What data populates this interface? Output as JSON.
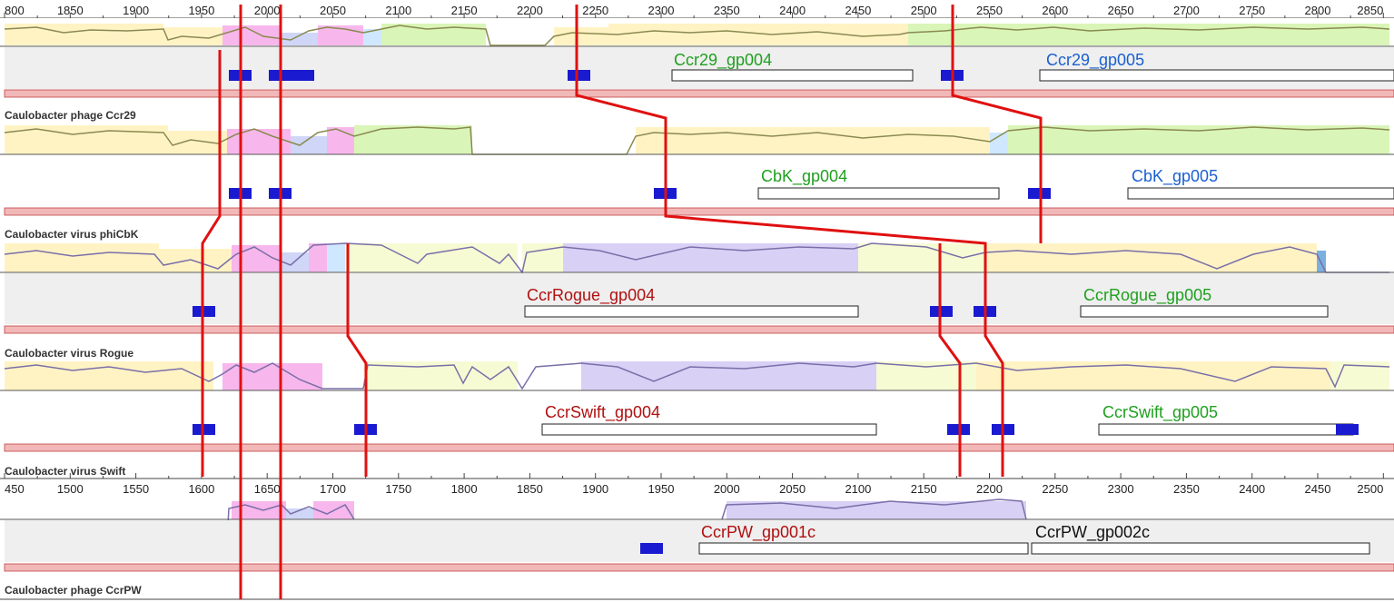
{
  "colors": {
    "red_line": "#e01010",
    "blue_block": "#1a1ad0",
    "panel_grey": "#efefef",
    "pink_bar": "#f2b8b8",
    "yellow": "#fff0b3",
    "green": "#d9f5b8",
    "purple": "#d8d0f5",
    "magenta": "#f08ae0",
    "lightblue": "#bfe0ff",
    "green_text": "#1fa01f",
    "blue_text": "#1a5fd0",
    "red_text": "#b01010",
    "black_text": "#111111"
  },
  "icons": {
    "junction": "blue-block-icon"
  },
  "top_axis": {
    "ticks": [
      "800",
      "1850",
      "1900",
      "1950",
      "2000",
      "2050",
      "2100",
      "2150",
      "2200",
      "2250",
      "2300",
      "2350",
      "2400",
      "2450",
      "2500",
      "2550",
      "2600",
      "2650",
      "2700",
      "2750",
      "2800",
      "2850"
    ]
  },
  "bottom_axis": {
    "ticks": [
      "450",
      "1500",
      "1550",
      "1600",
      "1650",
      "1700",
      "1750",
      "1800",
      "1850",
      "1900",
      "1950",
      "2000",
      "2050",
      "2100",
      "2150",
      "2200",
      "2250",
      "2300",
      "2350",
      "2400",
      "2450",
      "2500"
    ]
  },
  "tracks": [
    {
      "id": "ccr29",
      "name": "Caulobacter phage Ccr29",
      "genes": [
        {
          "label": "Ccr29_gp004",
          "color": "green"
        },
        {
          "label": "Ccr29_gp005",
          "color": "blue"
        }
      ]
    },
    {
      "id": "phicbk",
      "name": "Caulobacter virus phiCbK",
      "genes": [
        {
          "label": "CbK_gp004",
          "color": "green"
        },
        {
          "label": "CbK_gp005",
          "color": "blue"
        }
      ]
    },
    {
      "id": "rogue",
      "name": "Caulobacter virus Rogue",
      "genes": [
        {
          "label": "CcrRogue_gp004",
          "color": "red"
        },
        {
          "label": "CcrRogue_gp005",
          "color": "green"
        }
      ]
    },
    {
      "id": "swift",
      "name": "Caulobacter virus Swift",
      "genes": [
        {
          "label": "CcrSwift_gp004",
          "color": "red"
        },
        {
          "label": "CcrSwift_gp005",
          "color": "green"
        }
      ]
    },
    {
      "id": "ccrpw",
      "name": "Caulobacter phage CcrPW",
      "genes": [
        {
          "label": "CcrPW_gp001c",
          "color": "red"
        },
        {
          "label": "CcrPW_gp002c",
          "color": "black"
        }
      ]
    }
  ]
}
